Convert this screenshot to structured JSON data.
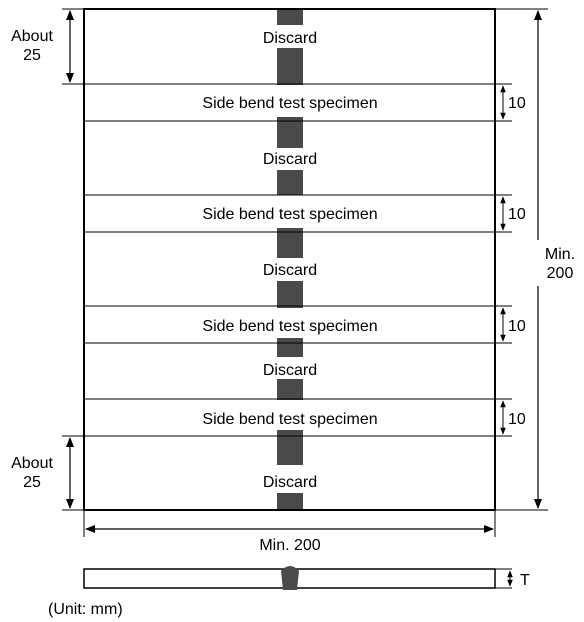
{
  "labels": {
    "discard": "Discard",
    "specimen": "Side bend test specimen",
    "about": "About",
    "about_value": "25",
    "specimen_width": "10",
    "min_label": "Min.",
    "min_value": "200",
    "width_label": "Min. 200",
    "thickness": "T",
    "unit": "(Unit: mm)"
  },
  "colors": {
    "weld": "#4a4a4a",
    "line": "#000000",
    "background": "#ffffff"
  }
}
